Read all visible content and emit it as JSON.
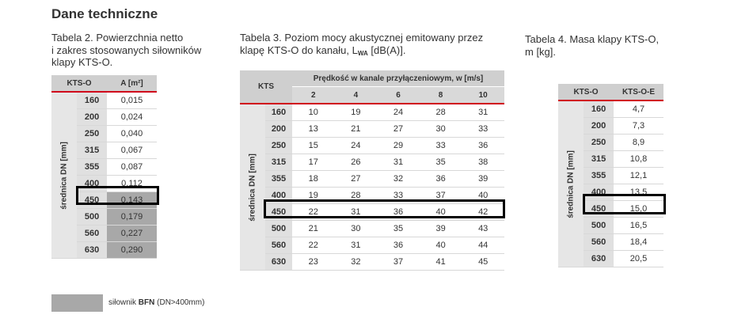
{
  "heading": "Dane techniczne",
  "table1": {
    "caption_lines": [
      "Tabela 2.  Powierzchnia netto",
      "i zakres stosowanych siłowników",
      "klapy KTS-O."
    ],
    "col1": "KTS-O",
    "col2": "A [m²]",
    "side_label": "średnica DN [mm]",
    "rows": [
      {
        "dn": "160",
        "v": "0,015"
      },
      {
        "dn": "200",
        "v": "0,024"
      },
      {
        "dn": "250",
        "v": "0,040"
      },
      {
        "dn": "315",
        "v": "0,067"
      },
      {
        "dn": "355",
        "v": "0,087"
      },
      {
        "dn": "400",
        "v": "0,112"
      },
      {
        "dn": "450",
        "v": "0,143"
      },
      {
        "dn": "500",
        "v": "0,179"
      },
      {
        "dn": "560",
        "v": "0,227"
      },
      {
        "dn": "630",
        "v": "0,290"
      }
    ]
  },
  "table2": {
    "caption_line1": "Tabela 3.  Poziom mocy akustycznej emitowany przez",
    "caption_line2_pre": "klapę KTS-O do kanału, L",
    "caption_sub": "WA",
    "caption_line2_post": " [dB(A)].",
    "col1": "KTS",
    "group_header": "Prędkość w kanale przyłączeniowym, w [m/s]",
    "speeds": [
      "2",
      "4",
      "6",
      "8",
      "10"
    ],
    "side_label": "średnica DN [mm]",
    "rows": [
      {
        "dn": "160",
        "v": [
          "10",
          "19",
          "24",
          "28",
          "31"
        ]
      },
      {
        "dn": "200",
        "v": [
          "13",
          "21",
          "27",
          "30",
          "33"
        ]
      },
      {
        "dn": "250",
        "v": [
          "15",
          "24",
          "29",
          "33",
          "36"
        ]
      },
      {
        "dn": "315",
        "v": [
          "17",
          "26",
          "31",
          "35",
          "38"
        ]
      },
      {
        "dn": "355",
        "v": [
          "18",
          "27",
          "32",
          "36",
          "39"
        ]
      },
      {
        "dn": "400",
        "v": [
          "19",
          "28",
          "33",
          "37",
          "40"
        ]
      },
      {
        "dn": "450",
        "v": [
          "22",
          "31",
          "36",
          "40",
          "42"
        ]
      },
      {
        "dn": "500",
        "v": [
          "21",
          "30",
          "35",
          "39",
          "43"
        ]
      },
      {
        "dn": "560",
        "v": [
          "22",
          "31",
          "36",
          "40",
          "44"
        ]
      },
      {
        "dn": "630",
        "v": [
          "23",
          "32",
          "37",
          "41",
          "45"
        ]
      }
    ]
  },
  "table3": {
    "caption_lines": [
      "Tabela 4.  Masa klapy KTS-O,",
      "m [kg]."
    ],
    "col1": "KTS-O",
    "col2": "KTS-O-E",
    "side_label": "średnica DN [mm]",
    "rows": [
      {
        "dn": "160",
        "v": "4,7"
      },
      {
        "dn": "200",
        "v": "7,3"
      },
      {
        "dn": "250",
        "v": "8,9"
      },
      {
        "dn": "315",
        "v": "10,8"
      },
      {
        "dn": "355",
        "v": "12,1"
      },
      {
        "dn": "400",
        "v": "13,5"
      },
      {
        "dn": "450",
        "v": "15,0"
      },
      {
        "dn": "500",
        "v": "16,5"
      },
      {
        "dn": "560",
        "v": "18,4"
      },
      {
        "dn": "630",
        "v": "20,5"
      }
    ]
  },
  "legend": {
    "pre": "siłownik ",
    "bold": "BFN",
    "post": " (DN>400mm)"
  },
  "colors": {
    "accent": "#d0021b",
    "bfn_fill": "#a8a8a8"
  }
}
